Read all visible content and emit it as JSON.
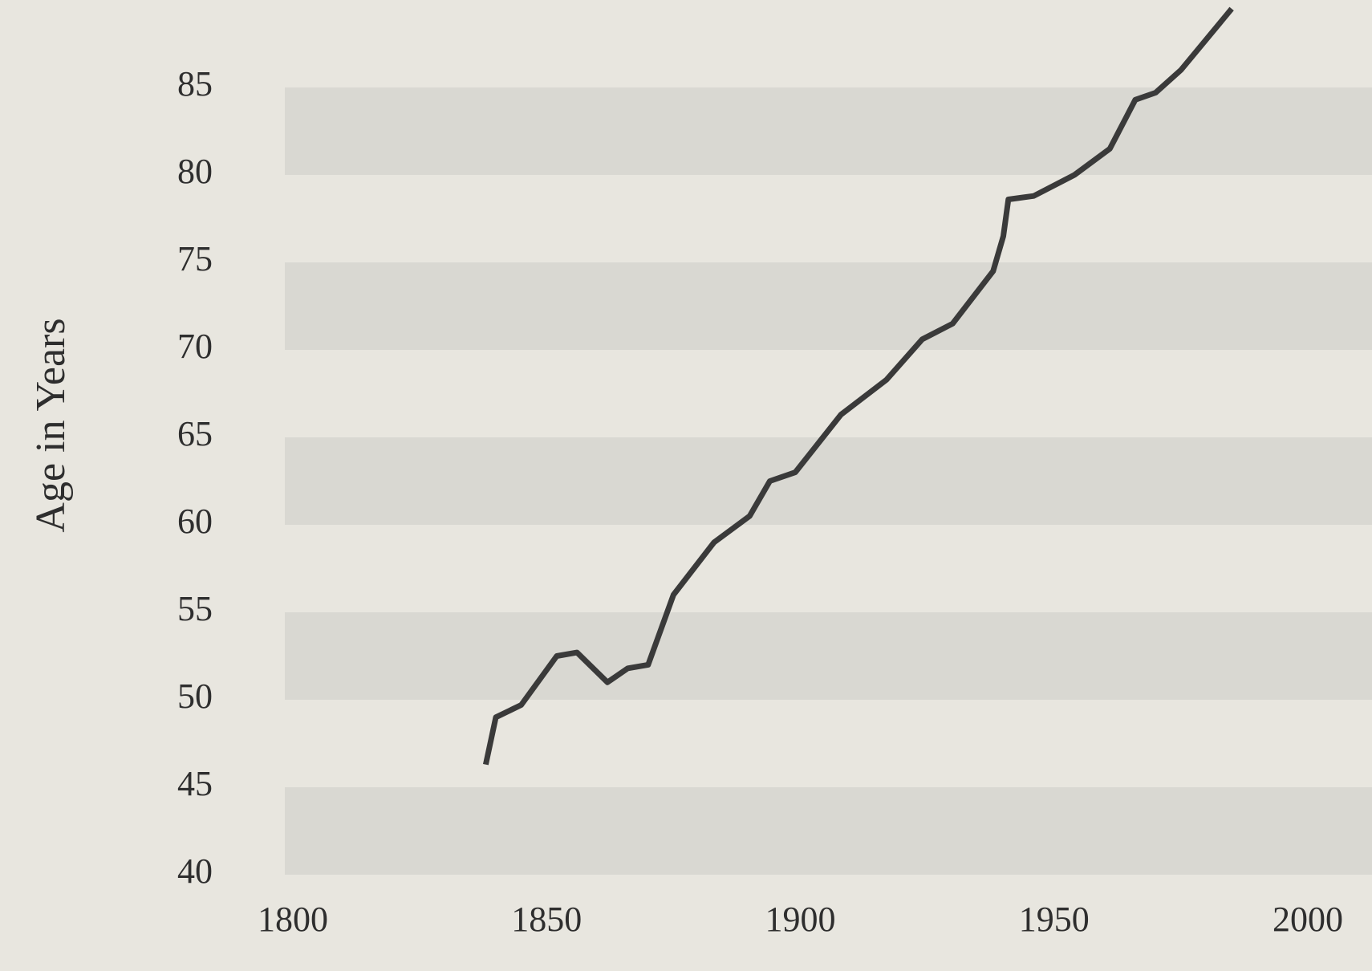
{
  "chart_data": {
    "type": "line",
    "y_label": "Age in Years",
    "x": [
      1838,
      1840,
      1845,
      1852,
      1856,
      1862,
      1866,
      1870,
      1875,
      1883,
      1890,
      1894,
      1899,
      1908,
      1917,
      1924,
      1930,
      1938,
      1940,
      1941,
      1946,
      1954,
      1961,
      1966,
      1970,
      1975,
      1985
    ],
    "series": [
      {
        "color": "#3a3a3a",
        "values": [
          46.3,
          49,
          49.7,
          52.5,
          52.7,
          51,
          51.8,
          52,
          56,
          59,
          60.5,
          62.5,
          63,
          66.3,
          68.3,
          70.6,
          71.5,
          74.5,
          76.5,
          78.6,
          78.8,
          80,
          81.5,
          84.3,
          84.7,
          86,
          89.5
        ]
      }
    ],
    "xlim": [
      1800,
      2000
    ],
    "xticks": [
      1800,
      1850,
      1900,
      1950,
      2000
    ],
    "ylim": [
      40,
      90
    ],
    "yticks": [
      40,
      45,
      50,
      55,
      60,
      65,
      70,
      75,
      80,
      85
    ],
    "grid": true
  }
}
